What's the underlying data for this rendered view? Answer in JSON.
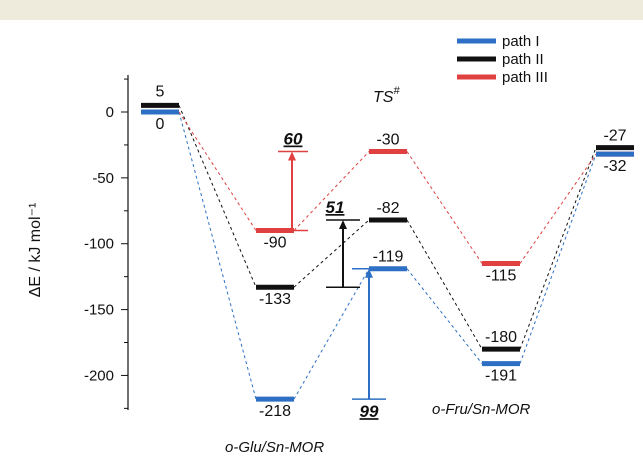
{
  "chart_data": {
    "type": "energy-profile",
    "ylabel": "ΔE / kJ mol⁻¹",
    "ylim": [
      -232,
      28
    ],
    "yticks": [
      0,
      -50,
      -100,
      -150,
      -200
    ],
    "legend": [
      {
        "name": "path I",
        "color": "#2d6fc4"
      },
      {
        "name": "path II",
        "color": "#111111"
      },
      {
        "name": "path III",
        "color": "#e04040"
      }
    ],
    "stages": [
      "initial",
      "o-Glu/Sn-MOR",
      "TS#",
      "o-Fru/Sn-MOR",
      "final"
    ],
    "stage_labels": {
      "glu": "o-Glu/Sn-MOR",
      "fru": "o-Fru/Sn-MOR",
      "ts": "TS",
      "ts_sup": "#"
    },
    "series": [
      {
        "name": "path I",
        "color": "#2d6fc4",
        "values": [
          0,
          -218,
          -119,
          -191,
          -32
        ],
        "labels": [
          "0",
          "-218",
          "-119",
          "-191",
          "-32"
        ]
      },
      {
        "name": "path II",
        "color": "#111111",
        "values": [
          5,
          -133,
          -82,
          -180,
          -27
        ],
        "labels": [
          "5",
          "-133",
          "-82",
          "-180",
          "-27"
        ]
      },
      {
        "name": "path III",
        "color": "#e04040",
        "values": [
          0,
          -90,
          -30,
          -115,
          -32
        ],
        "labels": [
          "",
          "-90",
          "-30",
          "-115",
          ""
        ]
      }
    ],
    "barriers": [
      {
        "series": "path III",
        "from": -90,
        "to": -30,
        "label": "60"
      },
      {
        "series": "path II",
        "from": -133,
        "to": -82,
        "label": "51"
      },
      {
        "series": "path I",
        "from": -218,
        "to": -119,
        "label": "99"
      }
    ]
  }
}
